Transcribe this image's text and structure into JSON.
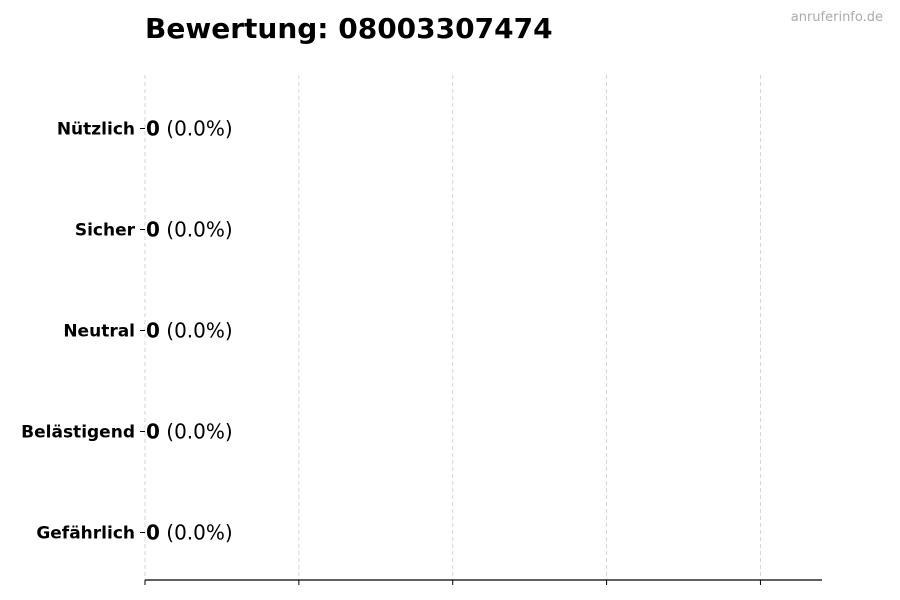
{
  "chart_data": {
    "type": "bar",
    "orientation": "horizontal",
    "title": "Bewertung: 08003307474",
    "watermark": "anruferinfo.de",
    "categories": [
      "Nützlich",
      "Sicher",
      "Neutral",
      "Belästigend",
      "Gefährlich"
    ],
    "values": [
      0,
      0,
      0,
      0,
      0
    ],
    "percentages": [
      "0.0%",
      "0.0%",
      "0.0%",
      "0.0%",
      "0.0%"
    ],
    "xlim": [
      0,
      4.4
    ],
    "xticks": [
      0,
      1,
      2,
      3,
      4
    ],
    "xtick_labels_shown": false,
    "grid": "x dashed",
    "colors": {
      "bar_edge": "#000000",
      "grid": "#cccccc",
      "watermark": "#aaaaaa"
    }
  }
}
